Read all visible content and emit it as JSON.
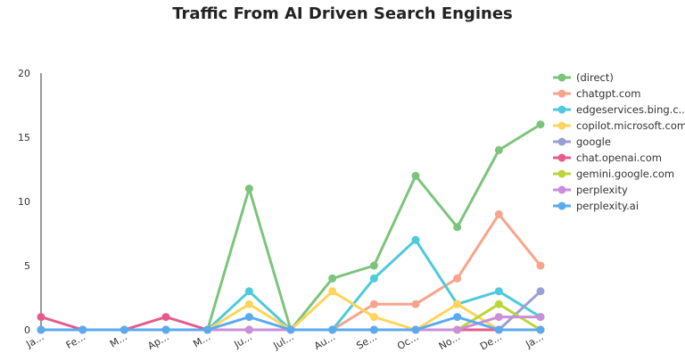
{
  "chart_data": {
    "type": "line",
    "title": "Traffic From AI Driven Search Engines",
    "categories": [
      "Ja...",
      "Fe...",
      "M...",
      "Ap...",
      "M...",
      "Ju...",
      "Jul...",
      "Au...",
      "Se...",
      "Oc...",
      "No...",
      "De...",
      "Ja..."
    ],
    "y_ticks": [
      "0",
      "5",
      "10",
      "15",
      "20"
    ],
    "ylim": [
      0,
      20
    ],
    "grid": false,
    "legend_position": "right",
    "series": [
      {
        "name": "(direct)",
        "color": "#7cc47c",
        "values": [
          0,
          0,
          0,
          0,
          0,
          11,
          0,
          4,
          5,
          12,
          8,
          14,
          16
        ]
      },
      {
        "name": "chatgpt.com",
        "color": "#f7a48c",
        "values": [
          0,
          0,
          0,
          0,
          0,
          0,
          0,
          0,
          2,
          2,
          4,
          9,
          5
        ]
      },
      {
        "name": "edgeservices.bing.c...",
        "color": "#4dcadb",
        "values": [
          0,
          0,
          0,
          0,
          0,
          3,
          0,
          0,
          4,
          7,
          2,
          3,
          1
        ]
      },
      {
        "name": "copilot.microsoft.com",
        "color": "#ffd45a",
        "values": [
          0,
          0,
          0,
          0,
          0,
          2,
          0,
          3,
          1,
          0,
          2,
          0,
          0
        ]
      },
      {
        "name": "google",
        "color": "#9aa0d4",
        "values": [
          0,
          0,
          0,
          0,
          0,
          0,
          0,
          0,
          0,
          0,
          0,
          0,
          3
        ]
      },
      {
        "name": "chat.openai.com",
        "color": "#e65b8c",
        "values": [
          1,
          0,
          0,
          1,
          0,
          0,
          0,
          0,
          0,
          0,
          0,
          0,
          0
        ]
      },
      {
        "name": "gemini.google.com",
        "color": "#bcd63a",
        "values": [
          0,
          0,
          0,
          0,
          0,
          0,
          0,
          0,
          0,
          0,
          0,
          2,
          0
        ]
      },
      {
        "name": "perplexity",
        "color": "#c98fd9",
        "values": [
          0,
          0,
          0,
          0,
          0,
          0,
          0,
          0,
          0,
          0,
          0,
          1,
          1
        ]
      },
      {
        "name": "perplexity.ai",
        "color": "#5aaaf0",
        "values": [
          0,
          0,
          0,
          0,
          0,
          1,
          0,
          0,
          0,
          0,
          1,
          0,
          0
        ]
      }
    ]
  }
}
